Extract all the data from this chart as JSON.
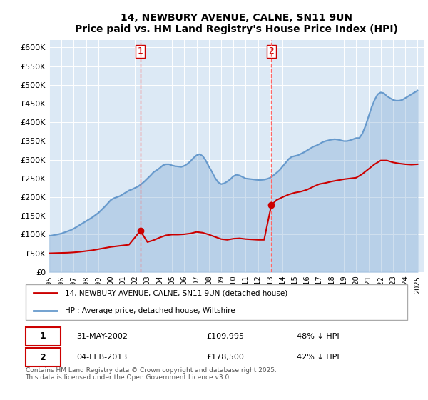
{
  "title": "14, NEWBURY AVENUE, CALNE, SN11 9UN",
  "subtitle": "Price paid vs. HM Land Registry's House Price Index (HPI)",
  "ylabel_ticks": [
    "£0",
    "£50K",
    "£100K",
    "£150K",
    "£200K",
    "£250K",
    "£300K",
    "£350K",
    "£400K",
    "£450K",
    "£500K",
    "£550K",
    "£600K"
  ],
  "ylim": [
    0,
    620000
  ],
  "xlim_start": 1995.0,
  "xlim_end": 2025.5,
  "bg_color": "#dce9f5",
  "plot_bg": "#dce9f5",
  "red_color": "#cc0000",
  "blue_color": "#6699cc",
  "vline_color": "#ff6666",
  "marker1_x": 2002.42,
  "marker1_y": 109995,
  "marker2_x": 2013.09,
  "marker2_y": 178500,
  "legend_red": "14, NEWBURY AVENUE, CALNE, SN11 9UN (detached house)",
  "legend_blue": "HPI: Average price, detached house, Wiltshire",
  "table_row1": "1    31-MAY-2002    £109,995    48% ↓ HPI",
  "table_row2": "2    04-FEB-2013    £178,500    42% ↓ HPI",
  "footnote": "Contains HM Land Registry data © Crown copyright and database right 2025.\nThis data is licensed under the Open Government Licence v3.0.",
  "hpi_x": [
    1995.0,
    1995.25,
    1995.5,
    1995.75,
    1996.0,
    1996.25,
    1996.5,
    1996.75,
    1997.0,
    1997.25,
    1997.5,
    1997.75,
    1998.0,
    1998.25,
    1998.5,
    1998.75,
    1999.0,
    1999.25,
    1999.5,
    1999.75,
    2000.0,
    2000.25,
    2000.5,
    2000.75,
    2001.0,
    2001.25,
    2001.5,
    2001.75,
    2002.0,
    2002.25,
    2002.5,
    2002.75,
    2003.0,
    2003.25,
    2003.5,
    2003.75,
    2004.0,
    2004.25,
    2004.5,
    2004.75,
    2005.0,
    2005.25,
    2005.5,
    2005.75,
    2006.0,
    2006.25,
    2006.5,
    2006.75,
    2007.0,
    2007.25,
    2007.5,
    2007.75,
    2008.0,
    2008.25,
    2008.5,
    2008.75,
    2009.0,
    2009.25,
    2009.5,
    2009.75,
    2010.0,
    2010.25,
    2010.5,
    2010.75,
    2011.0,
    2011.25,
    2011.5,
    2011.75,
    2012.0,
    2012.25,
    2012.5,
    2012.75,
    2013.0,
    2013.25,
    2013.5,
    2013.75,
    2014.0,
    2014.25,
    2014.5,
    2014.75,
    2015.0,
    2015.25,
    2015.5,
    2015.75,
    2016.0,
    2016.25,
    2016.5,
    2016.75,
    2017.0,
    2017.25,
    2017.5,
    2017.75,
    2018.0,
    2018.25,
    2018.5,
    2018.75,
    2019.0,
    2019.25,
    2019.5,
    2019.75,
    2020.0,
    2020.25,
    2020.5,
    2020.75,
    2021.0,
    2021.25,
    2021.5,
    2021.75,
    2022.0,
    2022.25,
    2022.5,
    2022.75,
    2023.0,
    2023.25,
    2023.5,
    2023.75,
    2024.0,
    2024.25,
    2024.5,
    2024.75,
    2025.0
  ],
  "hpi_y": [
    97000,
    98000,
    99500,
    101000,
    103000,
    106000,
    109000,
    112000,
    116000,
    121000,
    126000,
    131000,
    136000,
    141000,
    146000,
    152000,
    158000,
    166000,
    174000,
    183000,
    192000,
    197000,
    200000,
    203000,
    208000,
    213000,
    218000,
    221000,
    225000,
    229000,
    235000,
    242000,
    250000,
    258000,
    267000,
    272000,
    278000,
    285000,
    288000,
    288000,
    285000,
    283000,
    282000,
    281000,
    284000,
    289000,
    296000,
    305000,
    312000,
    315000,
    310000,
    298000,
    282000,
    268000,
    252000,
    240000,
    235000,
    237000,
    242000,
    248000,
    256000,
    260000,
    258000,
    254000,
    250000,
    249000,
    248000,
    247000,
    246000,
    246000,
    247000,
    249000,
    252000,
    258000,
    265000,
    272000,
    282000,
    292000,
    302000,
    308000,
    310000,
    312000,
    316000,
    320000,
    325000,
    330000,
    335000,
    338000,
    342000,
    347000,
    350000,
    352000,
    354000,
    355000,
    354000,
    352000,
    350000,
    350000,
    352000,
    355000,
    358000,
    358000,
    370000,
    390000,
    415000,
    440000,
    460000,
    475000,
    480000,
    478000,
    470000,
    465000,
    460000,
    458000,
    458000,
    460000,
    465000,
    470000,
    475000,
    480000,
    485000
  ],
  "red_x": [
    1995.0,
    1995.5,
    1996.0,
    1996.5,
    1997.0,
    1997.5,
    1998.0,
    1998.5,
    1999.0,
    1999.5,
    2000.0,
    2000.5,
    2001.0,
    2001.5,
    2002.42,
    2003.0,
    2003.5,
    2004.0,
    2004.5,
    2005.0,
    2005.5,
    2006.0,
    2006.5,
    2007.0,
    2007.5,
    2008.0,
    2008.5,
    2009.0,
    2009.5,
    2010.0,
    2010.5,
    2011.0,
    2011.5,
    2012.0,
    2012.5,
    2013.09,
    2013.5,
    2014.0,
    2014.5,
    2015.0,
    2015.5,
    2016.0,
    2016.5,
    2017.0,
    2017.5,
    2018.0,
    2018.5,
    2019.0,
    2019.5,
    2020.0,
    2020.5,
    2021.0,
    2021.5,
    2022.0,
    2022.5,
    2023.0,
    2023.5,
    2024.0,
    2024.5,
    2025.0
  ],
  "red_y": [
    50000,
    50500,
    51000,
    51500,
    52500,
    54000,
    56000,
    58000,
    61000,
    64000,
    67000,
    69000,
    71000,
    73000,
    109995,
    80000,
    85000,
    92000,
    98000,
    100000,
    100000,
    101000,
    103000,
    107000,
    105000,
    100000,
    94000,
    88000,
    86000,
    89000,
    90000,
    88000,
    87000,
    86000,
    86000,
    178500,
    192000,
    200000,
    207000,
    212000,
    215000,
    220000,
    228000,
    235000,
    238000,
    242000,
    245000,
    248000,
    250000,
    252000,
    262000,
    275000,
    288000,
    298000,
    298000,
    293000,
    290000,
    288000,
    287000,
    288000
  ]
}
